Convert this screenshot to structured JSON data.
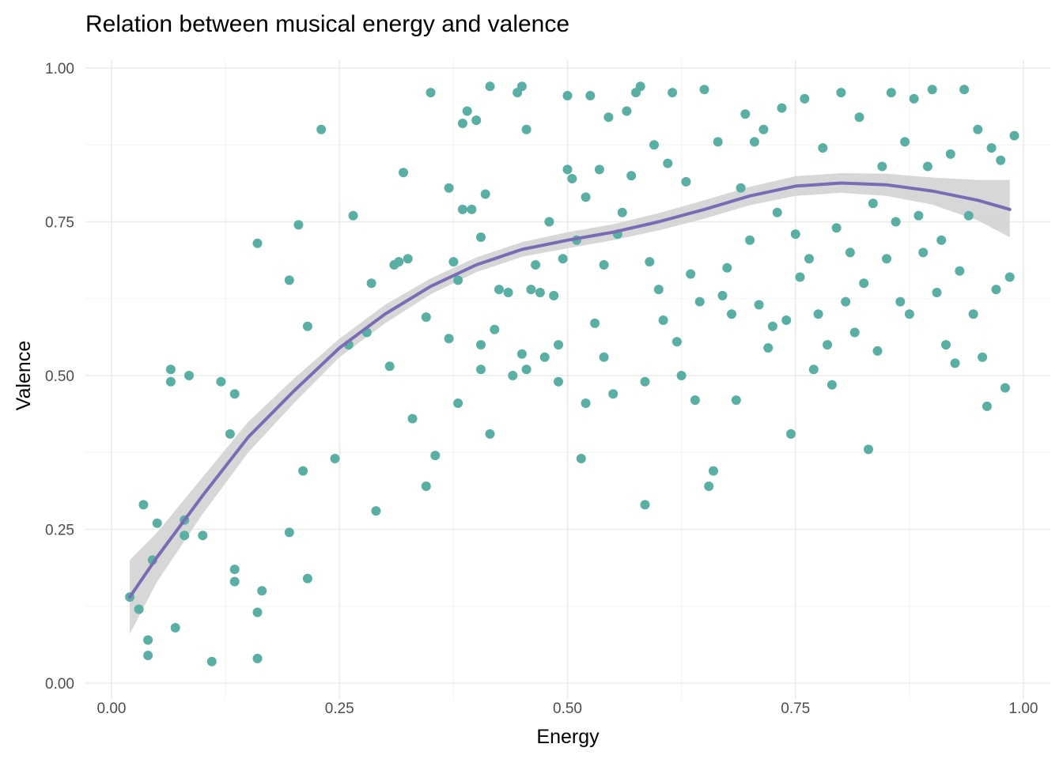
{
  "chart_data": {
    "type": "scatter",
    "title": "Relation between musical energy and valence",
    "xlabel": "Energy",
    "ylabel": "Valence",
    "xlim": [
      0,
      1
    ],
    "ylim": [
      0,
      1
    ],
    "x_ticks": [
      0,
      0.25,
      0.5,
      0.75,
      1
    ],
    "y_ticks": [
      0,
      0.25,
      0.5,
      0.75,
      1
    ],
    "x_tick_labels": [
      "0.00",
      "0.25",
      "0.50",
      "0.75",
      "1.00"
    ],
    "y_tick_labels": [
      "0.00",
      "0.25",
      "0.50",
      "0.75",
      "1.00"
    ],
    "grid": true,
    "point_color": "#5aafa5",
    "smooth_color": "#7a6bb5",
    "band_color": "#d3d3d3",
    "points": [
      [
        0.02,
        0.14
      ],
      [
        0.03,
        0.12
      ],
      [
        0.035,
        0.29
      ],
      [
        0.04,
        0.07
      ],
      [
        0.04,
        0.045
      ],
      [
        0.045,
        0.2
      ],
      [
        0.05,
        0.26
      ],
      [
        0.065,
        0.51
      ],
      [
        0.065,
        0.49
      ],
      [
        0.07,
        0.09
      ],
      [
        0.08,
        0.265
      ],
      [
        0.08,
        0.24
      ],
      [
        0.085,
        0.5
      ],
      [
        0.1,
        0.24
      ],
      [
        0.11,
        0.035
      ],
      [
        0.12,
        0.49
      ],
      [
        0.13,
        0.405
      ],
      [
        0.135,
        0.185
      ],
      [
        0.135,
        0.165
      ],
      [
        0.135,
        0.47
      ],
      [
        0.16,
        0.115
      ],
      [
        0.16,
        0.04
      ],
      [
        0.16,
        0.715
      ],
      [
        0.165,
        0.15
      ],
      [
        0.195,
        0.655
      ],
      [
        0.195,
        0.245
      ],
      [
        0.205,
        0.745
      ],
      [
        0.21,
        0.345
      ],
      [
        0.215,
        0.58
      ],
      [
        0.215,
        0.17
      ],
      [
        0.23,
        0.9
      ],
      [
        0.245,
        0.365
      ],
      [
        0.26,
        0.55
      ],
      [
        0.265,
        0.76
      ],
      [
        0.28,
        0.57
      ],
      [
        0.285,
        0.65
      ],
      [
        0.29,
        0.28
      ],
      [
        0.305,
        0.515
      ],
      [
        0.31,
        0.68
      ],
      [
        0.315,
        0.685
      ],
      [
        0.32,
        0.83
      ],
      [
        0.325,
        0.69
      ],
      [
        0.33,
        0.43
      ],
      [
        0.345,
        0.595
      ],
      [
        0.345,
        0.32
      ],
      [
        0.35,
        0.96
      ],
      [
        0.355,
        0.37
      ],
      [
        0.37,
        0.56
      ],
      [
        0.37,
        0.805
      ],
      [
        0.375,
        0.685
      ],
      [
        0.38,
        0.455
      ],
      [
        0.38,
        0.655
      ],
      [
        0.385,
        0.91
      ],
      [
        0.385,
        0.77
      ],
      [
        0.39,
        0.93
      ],
      [
        0.395,
        0.77
      ],
      [
        0.4,
        0.915
      ],
      [
        0.405,
        0.55
      ],
      [
        0.405,
        0.51
      ],
      [
        0.405,
        0.725
      ],
      [
        0.41,
        0.795
      ],
      [
        0.415,
        0.97
      ],
      [
        0.415,
        0.405
      ],
      [
        0.42,
        0.575
      ],
      [
        0.425,
        0.64
      ],
      [
        0.435,
        0.635
      ],
      [
        0.44,
        0.5
      ],
      [
        0.445,
        0.96
      ],
      [
        0.45,
        0.97
      ],
      [
        0.45,
        0.535
      ],
      [
        0.455,
        0.9
      ],
      [
        0.455,
        0.51
      ],
      [
        0.46,
        0.64
      ],
      [
        0.465,
        0.68
      ],
      [
        0.47,
        0.635
      ],
      [
        0.475,
        0.53
      ],
      [
        0.48,
        0.75
      ],
      [
        0.485,
        0.63
      ],
      [
        0.49,
        0.49
      ],
      [
        0.49,
        0.55
      ],
      [
        0.495,
        0.69
      ],
      [
        0.5,
        0.955
      ],
      [
        0.5,
        0.835
      ],
      [
        0.505,
        0.82
      ],
      [
        0.51,
        0.72
      ],
      [
        0.515,
        0.365
      ],
      [
        0.52,
        0.455
      ],
      [
        0.52,
        0.79
      ],
      [
        0.525,
        0.955
      ],
      [
        0.53,
        0.585
      ],
      [
        0.535,
        0.835
      ],
      [
        0.54,
        0.68
      ],
      [
        0.54,
        0.53
      ],
      [
        0.545,
        0.92
      ],
      [
        0.55,
        0.47
      ],
      [
        0.555,
        0.73
      ],
      [
        0.56,
        0.765
      ],
      [
        0.565,
        0.93
      ],
      [
        0.57,
        0.825
      ],
      [
        0.575,
        0.96
      ],
      [
        0.58,
        0.97
      ],
      [
        0.585,
        0.49
      ],
      [
        0.585,
        0.29
      ],
      [
        0.59,
        0.685
      ],
      [
        0.595,
        0.875
      ],
      [
        0.6,
        0.64
      ],
      [
        0.605,
        0.59
      ],
      [
        0.61,
        0.845
      ],
      [
        0.615,
        0.96
      ],
      [
        0.62,
        0.555
      ],
      [
        0.625,
        0.5
      ],
      [
        0.63,
        0.815
      ],
      [
        0.635,
        0.665
      ],
      [
        0.64,
        0.46
      ],
      [
        0.645,
        0.62
      ],
      [
        0.65,
        0.965
      ],
      [
        0.655,
        0.32
      ],
      [
        0.66,
        0.345
      ],
      [
        0.665,
        0.88
      ],
      [
        0.67,
        0.63
      ],
      [
        0.675,
        0.675
      ],
      [
        0.68,
        0.6
      ],
      [
        0.685,
        0.46
      ],
      [
        0.69,
        0.805
      ],
      [
        0.695,
        0.925
      ],
      [
        0.7,
        0.72
      ],
      [
        0.705,
        0.88
      ],
      [
        0.71,
        0.615
      ],
      [
        0.715,
        0.9
      ],
      [
        0.72,
        0.545
      ],
      [
        0.725,
        0.58
      ],
      [
        0.73,
        0.765
      ],
      [
        0.735,
        0.935
      ],
      [
        0.74,
        0.59
      ],
      [
        0.745,
        0.405
      ],
      [
        0.75,
        0.73
      ],
      [
        0.755,
        0.66
      ],
      [
        0.76,
        0.95
      ],
      [
        0.765,
        0.69
      ],
      [
        0.77,
        0.51
      ],
      [
        0.775,
        0.6
      ],
      [
        0.78,
        0.87
      ],
      [
        0.785,
        0.55
      ],
      [
        0.79,
        0.485
      ],
      [
        0.795,
        0.74
      ],
      [
        0.8,
        0.96
      ],
      [
        0.805,
        0.62
      ],
      [
        0.81,
        0.7
      ],
      [
        0.815,
        0.57
      ],
      [
        0.82,
        0.92
      ],
      [
        0.825,
        0.65
      ],
      [
        0.83,
        0.38
      ],
      [
        0.835,
        0.78
      ],
      [
        0.84,
        0.54
      ],
      [
        0.845,
        0.84
      ],
      [
        0.85,
        0.69
      ],
      [
        0.855,
        0.96
      ],
      [
        0.86,
        0.75
      ],
      [
        0.865,
        0.62
      ],
      [
        0.87,
        0.88
      ],
      [
        0.875,
        0.6
      ],
      [
        0.88,
        0.95
      ],
      [
        0.885,
        0.76
      ],
      [
        0.89,
        0.7
      ],
      [
        0.895,
        0.84
      ],
      [
        0.9,
        0.965
      ],
      [
        0.905,
        0.635
      ],
      [
        0.91,
        0.72
      ],
      [
        0.915,
        0.55
      ],
      [
        0.92,
        0.86
      ],
      [
        0.925,
        0.52
      ],
      [
        0.93,
        0.67
      ],
      [
        0.935,
        0.965
      ],
      [
        0.94,
        0.76
      ],
      [
        0.945,
        0.6
      ],
      [
        0.95,
        0.9
      ],
      [
        0.955,
        0.53
      ],
      [
        0.96,
        0.45
      ],
      [
        0.965,
        0.87
      ],
      [
        0.97,
        0.64
      ],
      [
        0.975,
        0.85
      ],
      [
        0.98,
        0.48
      ],
      [
        0.985,
        0.66
      ],
      [
        0.99,
        0.89
      ]
    ],
    "smooth_line": [
      [
        0.02,
        0.14
      ],
      [
        0.05,
        0.205
      ],
      [
        0.1,
        0.305
      ],
      [
        0.15,
        0.4
      ],
      [
        0.2,
        0.475
      ],
      [
        0.25,
        0.545
      ],
      [
        0.3,
        0.6
      ],
      [
        0.35,
        0.645
      ],
      [
        0.4,
        0.68
      ],
      [
        0.45,
        0.705
      ],
      [
        0.5,
        0.72
      ],
      [
        0.55,
        0.733
      ],
      [
        0.6,
        0.75
      ],
      [
        0.65,
        0.77
      ],
      [
        0.7,
        0.792
      ],
      [
        0.75,
        0.808
      ],
      [
        0.8,
        0.813
      ],
      [
        0.85,
        0.81
      ],
      [
        0.9,
        0.8
      ],
      [
        0.95,
        0.785
      ],
      [
        0.985,
        0.77
      ]
    ],
    "band_lower": [
      0.08,
      0.165,
      0.275,
      0.375,
      0.455,
      0.53,
      0.585,
      0.632,
      0.668,
      0.693,
      0.707,
      0.72,
      0.736,
      0.755,
      0.777,
      0.792,
      0.797,
      0.792,
      0.778,
      0.752,
      0.725
    ],
    "band_upper": [
      0.2,
      0.245,
      0.335,
      0.425,
      0.495,
      0.56,
      0.615,
      0.658,
      0.692,
      0.717,
      0.733,
      0.746,
      0.764,
      0.785,
      0.807,
      0.824,
      0.829,
      0.828,
      0.822,
      0.818,
      0.818
    ]
  }
}
